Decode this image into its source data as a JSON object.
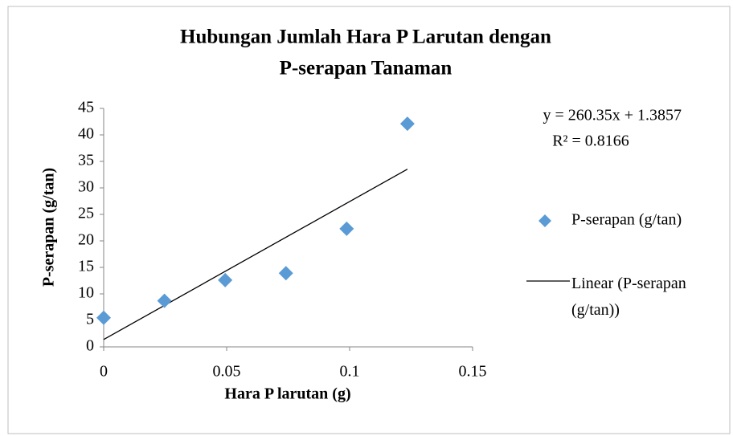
{
  "chart_data": {
    "type": "scatter",
    "title": [
      "Hubungan Jumlah Hara P Larutan dengan",
      "P-serapan Tanaman"
    ],
    "xlabel": "Hara P larutan (g)",
    "ylabel": "P-serapan (g/tan)",
    "series": [
      {
        "name": "P-serapan (g/tan)",
        "color": "#5b9bd5",
        "x": [
          0,
          0.0247,
          0.0494,
          0.0741,
          0.0988,
          0.1235
        ],
        "values": [
          5.5,
          8.7,
          12.6,
          13.9,
          22.3,
          42.1
        ]
      }
    ],
    "trendline": {
      "name": "Linear (P-serapan (g/tan))",
      "color": "#000000",
      "x": [
        0,
        0.1235
      ],
      "values": [
        1.3857,
        33.54
      ]
    },
    "annotations": [
      "y = 260.35x + 1.3857",
      "R² = 0.8166"
    ],
    "xlim": [
      0,
      0.15
    ],
    "xticks": [
      0,
      0.05,
      0.1,
      0.15
    ],
    "ylim": [
      0,
      45
    ],
    "yticks": [
      0,
      5,
      10,
      15,
      20,
      25,
      30,
      35,
      40,
      45
    ],
    "legend": "right"
  }
}
